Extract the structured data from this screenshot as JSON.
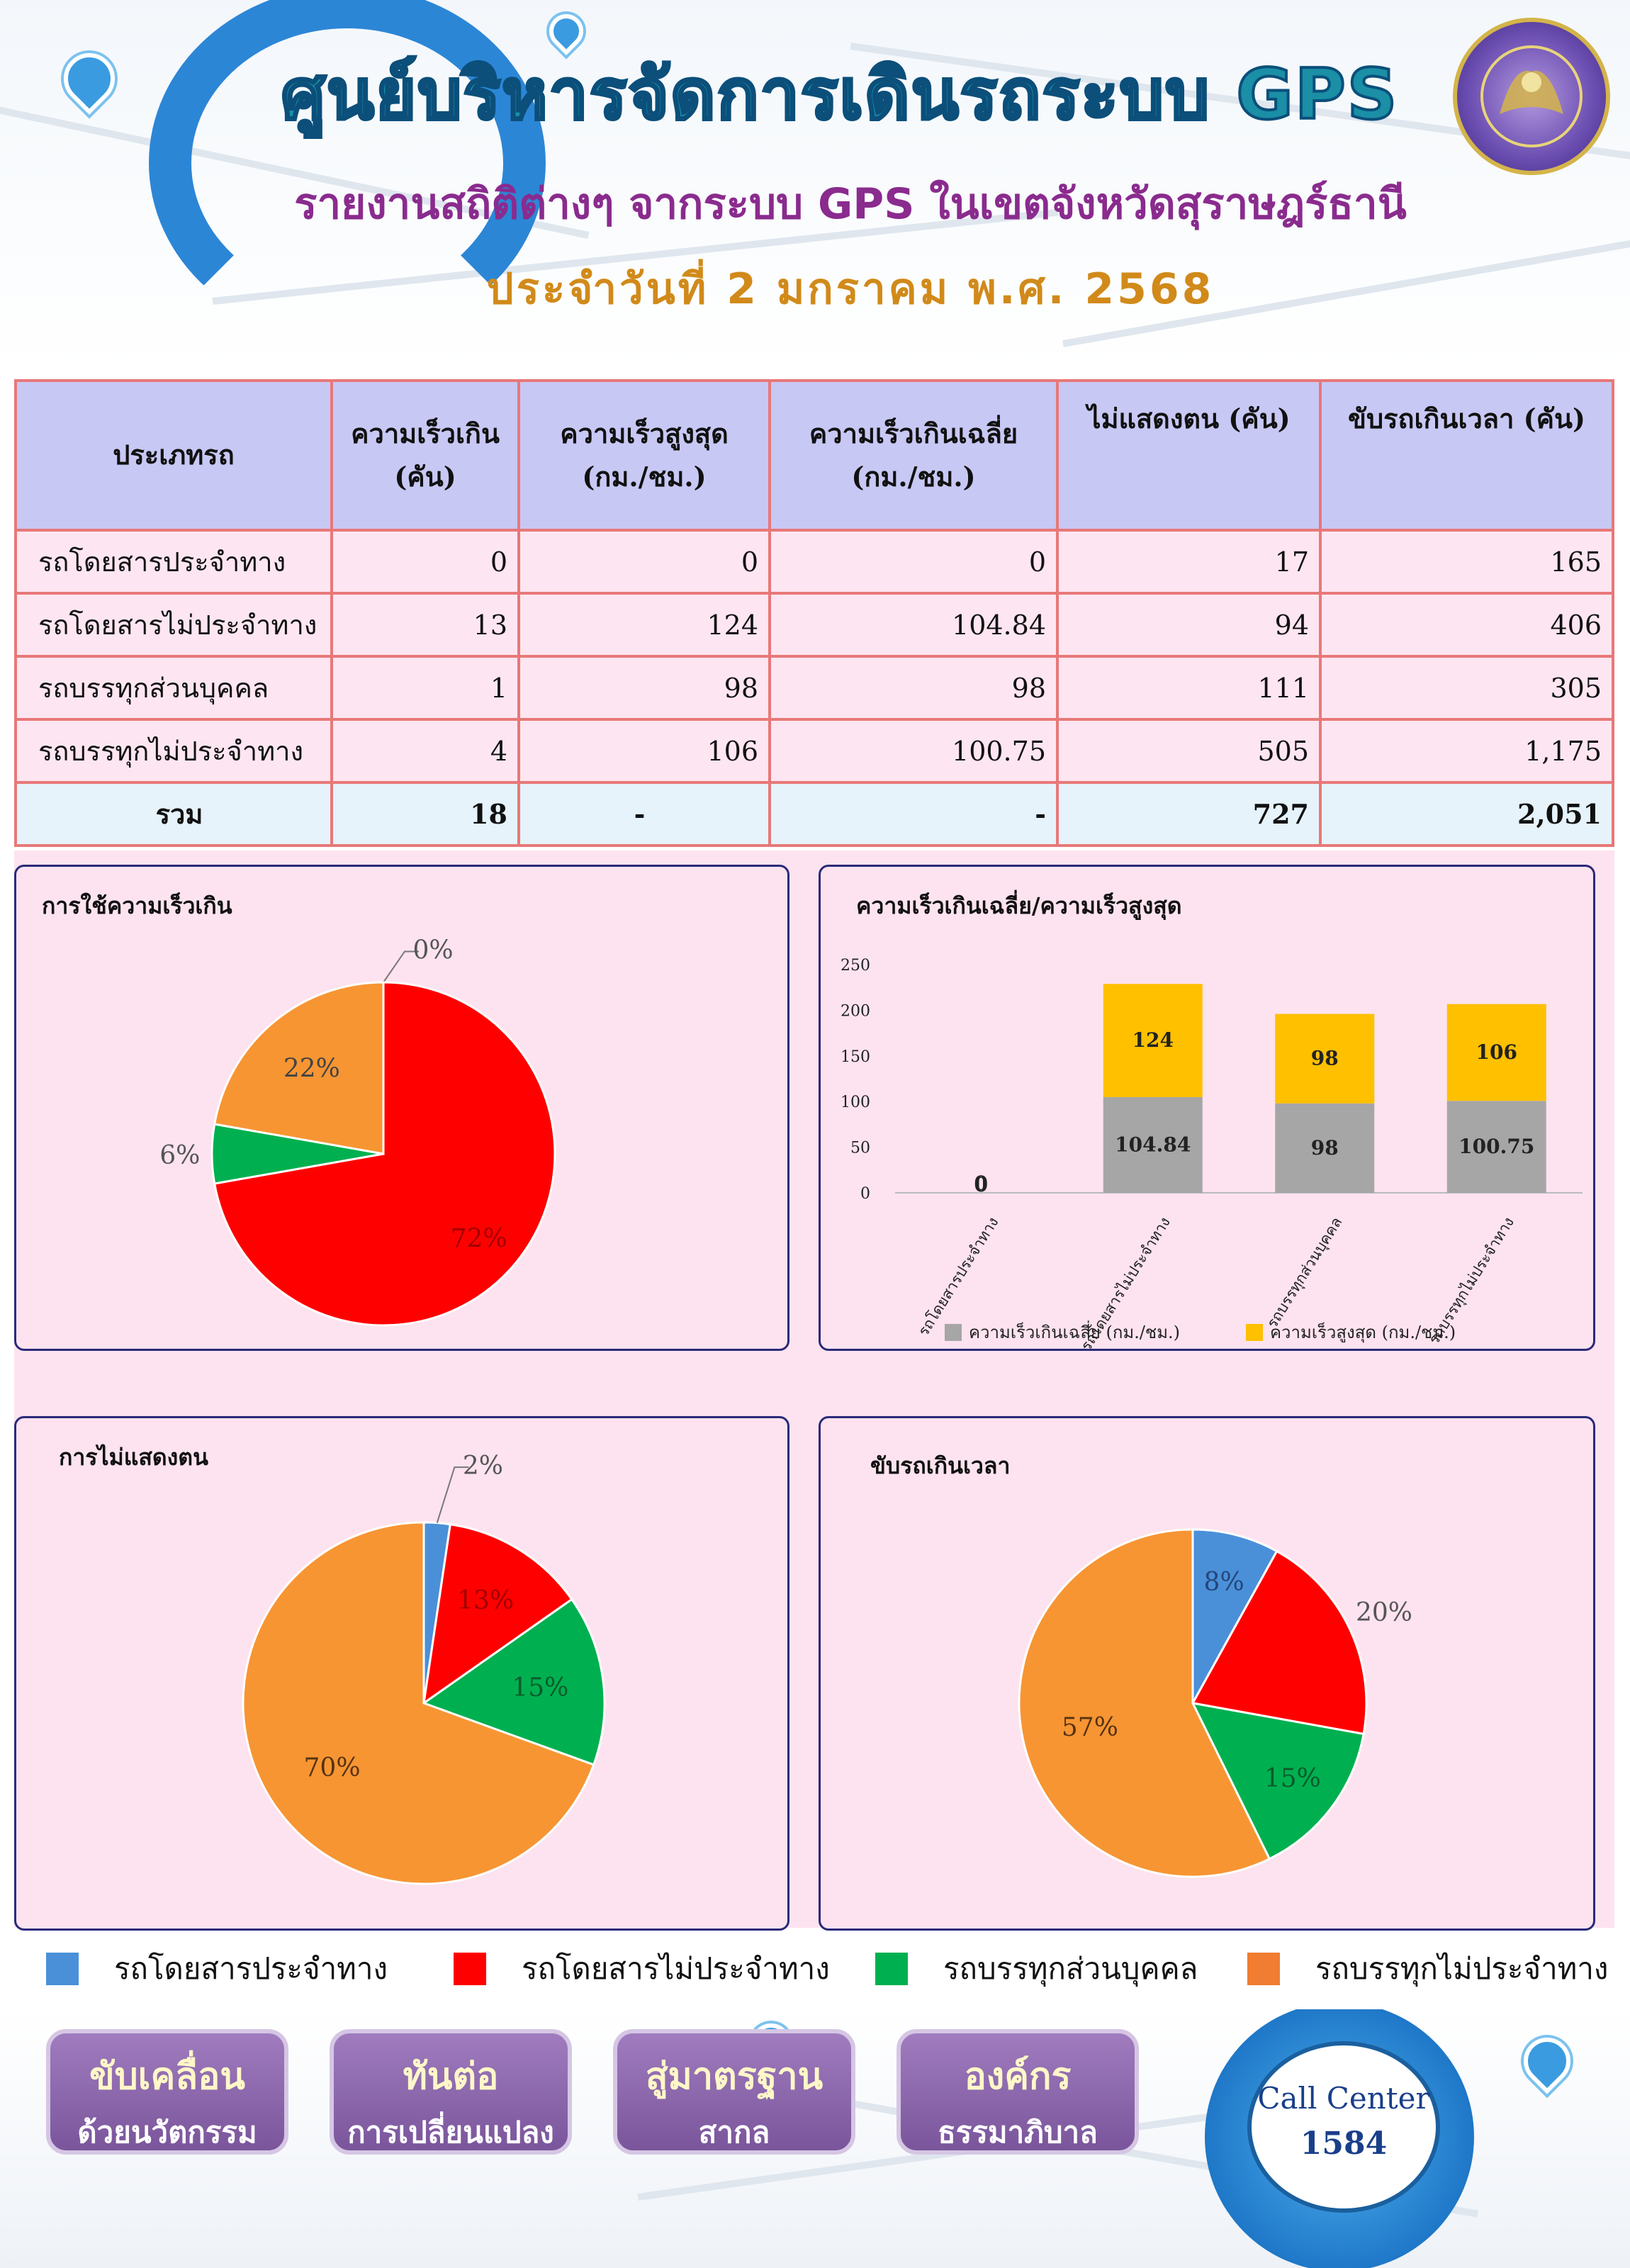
{
  "header": {
    "title": "ศูนย์บริหารจัดการเดินรถระบบ GPS",
    "subtitle": "รายงานสถิติต่างๆ จากระบบ GPS ในเขตจังหวัดสุราษฎร์ธานี",
    "date": "ประจำวันที่ 2 มกราคม พ.ศ. 2568"
  },
  "table": {
    "headers": [
      [
        "ประเภทรถ"
      ],
      [
        "ความเร็วเกิน",
        "(คัน)"
      ],
      [
        "ความเร็วสูงสุด",
        "(กม./ชม.)"
      ],
      [
        "ความเร็วเกินเฉลี่ย",
        "(กม./ชม.)"
      ],
      [
        "ไม่แสดงตน (คัน)",
        ""
      ],
      [
        "ขับรถเกินเวลา (คัน)",
        ""
      ]
    ],
    "rows": [
      [
        "รถโดยสารประจำทาง",
        "0",
        "0",
        "0",
        "17",
        "165"
      ],
      [
        "รถโดยสารไม่ประจำทาง",
        "13",
        "124",
        "104.84",
        "94",
        "406"
      ],
      [
        "รถบรรทุกส่วนบุคคล",
        "1",
        "98",
        "98",
        "111",
        "305"
      ],
      [
        "รถบรรทุกไม่ประจำทาง",
        "4",
        "106",
        "100.75",
        "505",
        "1,175"
      ]
    ],
    "total": [
      "รวม",
      "18",
      "-",
      "-",
      "727",
      "2,051"
    ]
  },
  "colors": {
    "bus_fixed": "#4a90d9",
    "bus_nonfixed": "#ff0000",
    "truck_private": "#00b050",
    "truck_nonfixed": "#f79533",
    "bar_avg": "#a6a6a6",
    "bar_max": "#ffc000"
  },
  "chart_data": [
    {
      "type": "pie",
      "title": "การใช้ความเร็วเกิน",
      "labels": [
        "รถโดยสารประจำทาง",
        "รถโดยสารไม่ประจำทาง",
        "รถบรรทุกส่วนบุคคล",
        "รถบรรทุกไม่ประจำทาง"
      ],
      "values": [
        0,
        13,
        1,
        4
      ],
      "percent_labels": [
        "0%",
        "72%",
        "6%",
        "22%"
      ]
    },
    {
      "type": "bar",
      "stacked": true,
      "title": "ความเร็วเกินเฉลี่ย/ความเร็วสูงสุด",
      "categories": [
        "รถโดยสารประจำทาง",
        "รถโดยสารไม่ประจำทาง",
        "รถบรรทุกส่วนบุคคล",
        "รถบรรทุกไม่ประจำทาง"
      ],
      "series": [
        {
          "name": "ความเร็วเกินเฉลี่ย (กม./ชม.)",
          "values": [
            0,
            104.84,
            98,
            100.75
          ]
        },
        {
          "name": "ความเร็วสูงสุด (กม./ชม.)",
          "values": [
            0,
            124,
            98,
            106
          ]
        }
      ],
      "yticks": [
        "0",
        "50",
        "100",
        "150",
        "200",
        "250"
      ],
      "ylim": [
        0,
        250
      ],
      "grid": false,
      "legend": "bottom"
    },
    {
      "type": "pie",
      "title": "การไม่แสดงตน",
      "labels": [
        "รถโดยสารประจำทาง",
        "รถโดยสารไม่ประจำทาง",
        "รถบรรทุกส่วนบุคคล",
        "รถบรรทุกไม่ประจำทาง"
      ],
      "values": [
        17,
        94,
        111,
        505
      ],
      "percent_labels": [
        "2%",
        "13%",
        "15%",
        "70%"
      ]
    },
    {
      "type": "pie",
      "title": "ขับรถเกินเวลา",
      "labels": [
        "รถโดยสารประจำทาง",
        "รถโดยสารไม่ประจำทาง",
        "รถบรรทุกส่วนบุคคล",
        "รถบรรทุกไม่ประจำทาง"
      ],
      "values": [
        165,
        406,
        305,
        1175
      ],
      "percent_labels": [
        "8%",
        "20%",
        "15%",
        "57%"
      ]
    }
  ],
  "legend": [
    {
      "label": "รถโดยสารประจำทาง",
      "color": "#4a90d9"
    },
    {
      "label": "รถโดยสารไม่ประจำทาง",
      "color": "#ff0000"
    },
    {
      "label": "รถบรรทุกส่วนบุคคล",
      "color": "#00b050"
    },
    {
      "label": "รถบรรทุกไม่ประจำทาง",
      "color": "#f07d31"
    }
  ],
  "footer": {
    "buttons": [
      {
        "line1": "ขับเคลื่อน",
        "line2": "ด้วยนวัตกรรม"
      },
      {
        "line1": "ทันต่อ",
        "line2": "การเปลี่ยนแปลง"
      },
      {
        "line1": "สู่มาตรฐาน",
        "line2": "สากล"
      },
      {
        "line1": "องค์กร",
        "line2": "ธรรมาภิบาล"
      }
    ],
    "call_center": {
      "label": "Call Center",
      "number": "1584"
    }
  }
}
